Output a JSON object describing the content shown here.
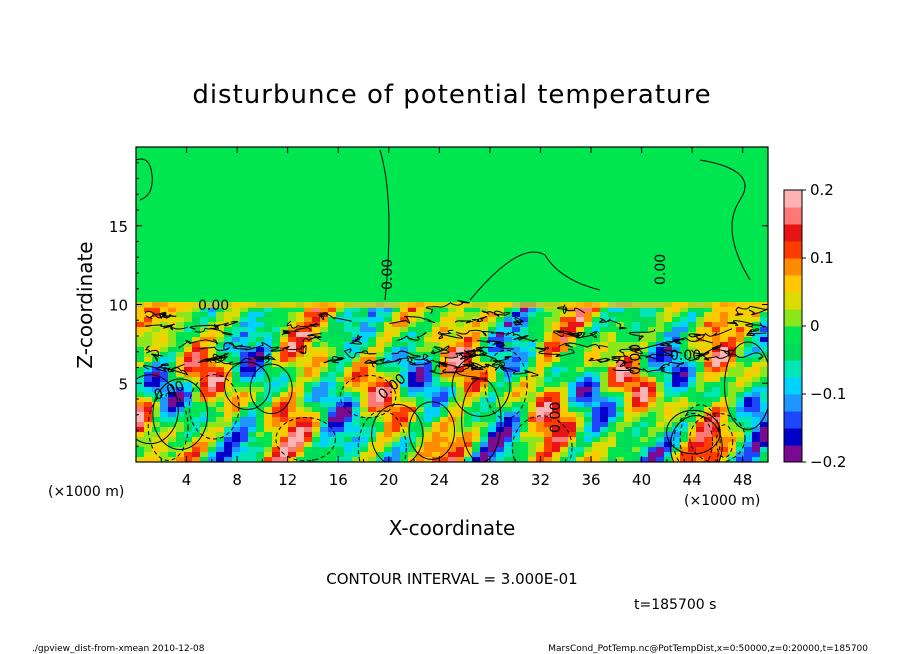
{
  "chart_data": {
    "type": "heatmap",
    "title": "disturbunce of potential temperature",
    "xlabel": "X-coordinate",
    "ylabel": "Z-coordinate",
    "x_unit": "(×1000 m)",
    "z_unit": "(×1000 m)",
    "xlim": [
      0,
      50
    ],
    "ylim": [
      0,
      20
    ],
    "x_ticks": [
      "4",
      "8",
      "12",
      "16",
      "20",
      "24",
      "28",
      "32",
      "36",
      "40",
      "44",
      "48"
    ],
    "y_ticks": [
      "5",
      "10",
      "15"
    ],
    "colorbar": {
      "range": [
        -0.2,
        0.2
      ],
      "tick_labels": [
        "0.2",
        "0.1",
        "0",
        "−0.1",
        "−0.2"
      ],
      "colors": [
        "#7a0a8f",
        "#0000c8",
        "#1e46ff",
        "#1e96ff",
        "#00d2ff",
        "#00e6b4",
        "#00dc5a",
        "#00e650",
        "#8ce61e",
        "#dcdc00",
        "#ffc800",
        "#ff8c00",
        "#ff3c00",
        "#e61414",
        "#ff7878",
        "#ffb4b4"
      ]
    },
    "contour_labels": [
      "0.00",
      "0.00",
      "0.00",
      "0.00",
      "0.00",
      "0.00",
      "0.00",
      "0.00"
    ],
    "contour_interval": "CONTOUR INTERVAL = 3.000E-01",
    "time_label": "t=185700 s",
    "footer_left": "./gpview_dist-from-xmean   2010-12-08",
    "footer_right": "MarsCond_PotTemp.nc@PotTempDist,x=0:50000,z=0:20000,t=185700"
  }
}
